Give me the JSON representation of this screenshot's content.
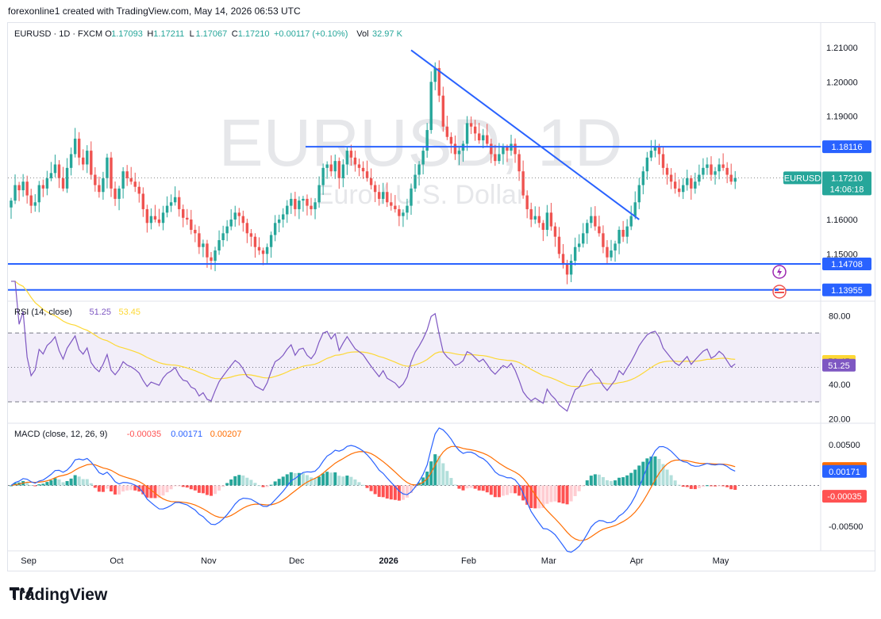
{
  "caption": "forexonline1 created with TradingView.com, May 14, 2026 06:53 UTC",
  "footer": {
    "brand": "TradingView"
  },
  "header": {
    "symbol": "EURUSD · 1D · FXCM",
    "o_label": "O",
    "o_value": "1.17093",
    "h_label": "H",
    "h_value": "1.17211",
    "l_label": "L",
    "l_value": "1.17067",
    "c_label": "C",
    "c_value": "1.17210",
    "change": "+0.00117 (+0.10%)",
    "vol_label": "Vol",
    "vol_value": "32.97 K"
  },
  "watermark": {
    "line1": "EURUSD, 1D",
    "line2": "Euro / U.S. Dollar"
  },
  "colors": {
    "up": "#26a69a",
    "down": "#ef5350",
    "line": "#2962ff",
    "rsi": "#7e57c2",
    "rsi_ma": "#fdd835",
    "macd": "#2962ff",
    "signal": "#ff6d00"
  },
  "chart_data": [
    {
      "type": "candlestick",
      "price_axis": [
        "1.21000",
        "1.20000",
        "1.19000",
        "1.16000",
        "1.15000"
      ],
      "time_axis": [
        "Sep",
        "Oct",
        "Nov",
        "Dec",
        "2026",
        "Feb",
        "Mar",
        "Apr",
        "May"
      ],
      "ylim": [
        1.1365,
        1.2125
      ],
      "horizontal_lines": [
        {
          "label": "1.18116",
          "value": 1.18116
        },
        {
          "label": "1.14708",
          "value": 1.14708
        },
        {
          "label": "1.13955",
          "value": 1.13955
        }
      ],
      "trendline": {
        "from": {
          "date": "Jan 27",
          "price": 1.2092
        },
        "to": {
          "date": "Mar 27",
          "price": 1.16
        }
      },
      "last_price": {
        "symbol": "EURUSD",
        "value": "1.17210",
        "countdown": "14:06:18"
      },
      "closes": [
        1.1655,
        1.17,
        1.1685,
        1.171,
        1.167,
        1.164,
        1.165,
        1.17,
        1.169,
        1.172,
        1.1735,
        1.176,
        1.172,
        1.169,
        1.175,
        1.179,
        1.1835,
        1.178,
        1.176,
        1.18,
        1.173,
        1.17,
        1.168,
        1.172,
        1.178,
        1.169,
        1.166,
        1.169,
        1.174,
        1.172,
        1.171,
        1.1695,
        1.1675,
        1.163,
        1.159,
        1.161,
        1.16,
        1.159,
        1.162,
        1.164,
        1.165,
        1.1665,
        1.163,
        1.1605,
        1.16,
        1.157,
        1.156,
        1.152,
        1.153,
        1.149,
        1.148,
        1.151,
        1.154,
        1.156,
        1.158,
        1.16,
        1.162,
        1.161,
        1.159,
        1.156,
        1.155,
        1.152,
        1.151,
        1.15,
        1.152,
        1.1555,
        1.159,
        1.16,
        1.1615,
        1.164,
        1.166,
        1.163,
        1.1655,
        1.166,
        1.164,
        1.163,
        1.165,
        1.17,
        1.175,
        1.176,
        1.174,
        1.177,
        1.172,
        1.176,
        1.18,
        1.178,
        1.176,
        1.175,
        1.174,
        1.172,
        1.17,
        1.168,
        1.166,
        1.168,
        1.165,
        1.164,
        1.163,
        1.161,
        1.162,
        1.164,
        1.169,
        1.173,
        1.176,
        1.18,
        1.186,
        1.2,
        1.204,
        1.196,
        1.187,
        1.184,
        1.182,
        1.179,
        1.18,
        1.182,
        1.188,
        1.187,
        1.185,
        1.183,
        1.1845,
        1.182,
        1.179,
        1.177,
        1.179,
        1.181,
        1.18,
        1.182,
        1.179,
        1.174,
        1.167,
        1.163,
        1.16,
        1.161,
        1.159,
        1.157,
        1.162,
        1.158,
        1.155,
        1.15,
        1.147,
        1.144,
        1.148,
        1.152,
        1.153,
        1.156,
        1.159,
        1.161,
        1.158,
        1.156,
        1.152,
        1.149,
        1.151,
        1.153,
        1.157,
        1.155,
        1.158,
        1.161,
        1.165,
        1.17,
        1.174,
        1.178,
        1.18,
        1.181,
        1.179,
        1.175,
        1.173,
        1.171,
        1.169,
        1.168,
        1.17,
        1.172,
        1.169,
        1.171,
        1.173,
        1.175,
        1.176,
        1.173,
        1.174,
        1.176,
        1.175,
        1.173,
        1.171,
        1.1721
      ]
    },
    {
      "type": "line",
      "title": "RSI (14, close)",
      "rsi_value": "51.25",
      "ma_value": "53.45",
      "axis": [
        "80.00",
        "40.00",
        "20.00"
      ],
      "ylim": [
        20,
        80
      ],
      "band": [
        30,
        70
      ],
      "midline": 50
    },
    {
      "type": "bar",
      "title": "MACD (close, 12, 26, 9)",
      "histogram_value": "-0.00035",
      "macd_value": "0.00171",
      "signal_value": "0.00207",
      "axis": [
        "0.00500",
        "-0.00500"
      ],
      "ylim": [
        -0.0078,
        0.0075
      ]
    }
  ]
}
